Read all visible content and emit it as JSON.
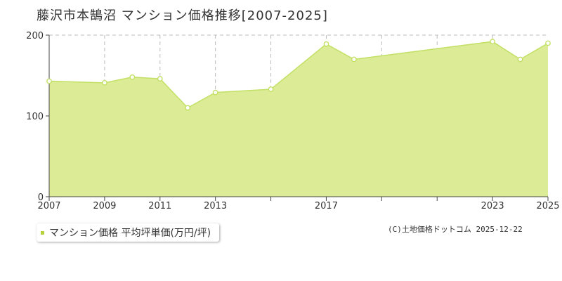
{
  "title": "藤沢市本鵠沼 マンション価格推移[2007-2025]",
  "legend": {
    "label": "マンション価格 平均坪単価(万円/坪)"
  },
  "copyright": "(C)土地価格ドットコム 2025-12-22",
  "colors": {
    "area_fill": "#dceb95",
    "line": "#c2e065",
    "marker_fill": "#ffffff",
    "grid": "#bbbbbb",
    "axis": "#444444",
    "legend_swatch": "#b5d23c"
  },
  "chart_data": {
    "type": "area",
    "title": "藤沢市本鵠沼 マンション価格推移[2007-2025]",
    "xlabel": "",
    "ylabel": "",
    "x": [
      2007,
      2009,
      2010,
      2011,
      2012,
      2013,
      2015,
      2017,
      2018,
      2023,
      2024,
      2025
    ],
    "series": [
      {
        "name": "マンション価格 平均坪単価(万円/坪)",
        "values": [
          143,
          141,
          148,
          146,
          110,
          129,
          133,
          189,
          170,
          192,
          170,
          190
        ]
      }
    ],
    "x_tick_labels": [
      "2007",
      "2009",
      "2011",
      "2013",
      "2017",
      "2023",
      "2025"
    ],
    "y_ticks": [
      0,
      100,
      200
    ],
    "y_tick_labels": [
      "0",
      "100",
      "200"
    ],
    "ylim": [
      0,
      200
    ],
    "grid": true,
    "legend_position": "bottom-left"
  }
}
